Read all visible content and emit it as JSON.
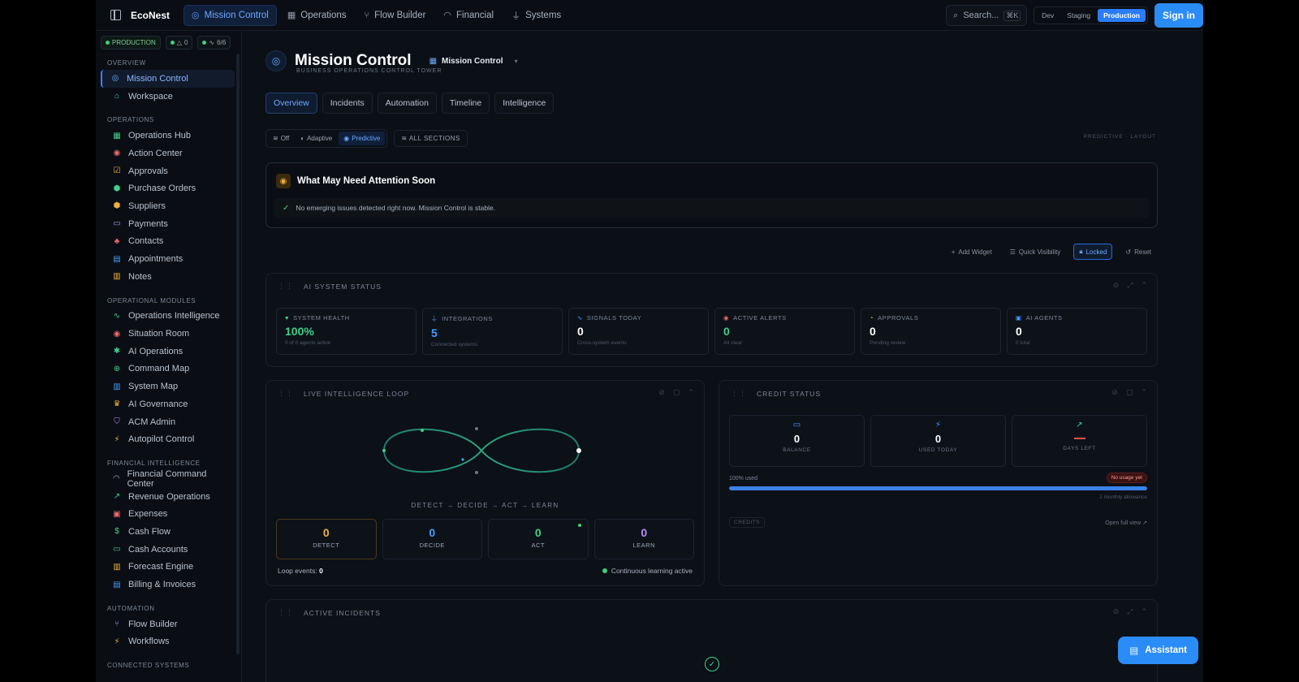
{
  "app": {
    "brand": "EcoNest",
    "nav_tabs": [
      {
        "label": "Mission Control",
        "icon": "gauge-icon"
      },
      {
        "label": "Operations",
        "icon": "grid-icon"
      },
      {
        "label": "Flow Builder",
        "icon": "flow-icon"
      },
      {
        "label": "Financial",
        "icon": "dial-icon"
      },
      {
        "label": "Systems",
        "icon": "plug-icon"
      }
    ],
    "search_placeholder": "Search...",
    "search_shortcut": "⌘K",
    "envs": [
      "Dev",
      "Staging",
      "Production"
    ],
    "active_env": "Production",
    "sign_in": "Sign in"
  },
  "sidebar": {
    "status": {
      "env": "PRODUCTION",
      "alerts": "0",
      "health": "6/6"
    },
    "sections": [
      {
        "title": "OVERVIEW",
        "items": [
          {
            "label": "Mission Control",
            "icon": "◎",
            "color": "#6ea8ff",
            "active": true
          },
          {
            "label": "Workspace",
            "icon": "⌂",
            "color": "#3ed08a"
          }
        ]
      },
      {
        "title": "OPERATIONS",
        "items": [
          {
            "label": "Operations Hub",
            "icon": "▦",
            "color": "#3ed08a"
          },
          {
            "label": "Action Center",
            "icon": "◉",
            "color": "#f26a6a"
          },
          {
            "label": "Approvals",
            "icon": "☑",
            "color": "#f0b13a"
          },
          {
            "label": "Purchase Orders",
            "icon": "⬢",
            "color": "#3ed08a"
          },
          {
            "label": "Suppliers",
            "icon": "⬢",
            "color": "#f0b13a"
          },
          {
            "label": "Payments",
            "icon": "▭",
            "color": "#b48cff"
          },
          {
            "label": "Contacts",
            "icon": "♣",
            "color": "#f26a6a"
          },
          {
            "label": "Appointments",
            "icon": "▤",
            "color": "#4a9cff"
          },
          {
            "label": "Notes",
            "icon": "▥",
            "color": "#f0b13a"
          }
        ]
      },
      {
        "title": "OPERATIONAL MODULES",
        "items": [
          {
            "label": "Operations Intelligence",
            "icon": "∿",
            "color": "#3ed08a"
          },
          {
            "label": "Situation Room",
            "icon": "◉",
            "color": "#f26a6a"
          },
          {
            "label": "AI Operations",
            "icon": "✱",
            "color": "#3ed08a"
          },
          {
            "label": "Command Map",
            "icon": "⊕",
            "color": "#3ed08a"
          },
          {
            "label": "System Map",
            "icon": "▥",
            "color": "#4a9cff"
          },
          {
            "label": "AI Governance",
            "icon": "♛",
            "color": "#f0b13a"
          },
          {
            "label": "ACM Admin",
            "icon": "⛉",
            "color": "#b48cff"
          },
          {
            "label": "Autopilot Control",
            "icon": "⚡",
            "color": "#f0b13a"
          }
        ]
      },
      {
        "title": "FINANCIAL INTELLIGENCE",
        "items": [
          {
            "label": "Financial Command Center",
            "icon": "◠",
            "color": "#a9b3c2"
          },
          {
            "label": "Revenue Operations",
            "icon": "↗",
            "color": "#3ed08a"
          },
          {
            "label": "Expenses",
            "icon": "▣",
            "color": "#f26a6a"
          },
          {
            "label": "Cash Flow",
            "icon": "$",
            "color": "#3ed08a"
          },
          {
            "label": "Cash Accounts",
            "icon": "▭",
            "color": "#3ed08a"
          },
          {
            "label": "Forecast Engine",
            "icon": "▥",
            "color": "#f0b13a"
          },
          {
            "label": "Billing & Invoices",
            "icon": "▤",
            "color": "#4a9cff"
          }
        ]
      },
      {
        "title": "AUTOMATION",
        "items": [
          {
            "label": "Flow Builder",
            "icon": "⑂",
            "color": "#b48cff"
          },
          {
            "label": "Workflows",
            "icon": "⚡",
            "color": "#f0b13a"
          }
        ]
      },
      {
        "title": "CONNECTED SYSTEMS",
        "items": []
      }
    ]
  },
  "header": {
    "title": "Mission Control",
    "subtitle": "BUSINESS OPERATIONS CONTROL TOWER",
    "switcher": "Mission Control"
  },
  "tabs": [
    "Overview",
    "Incidents",
    "Automation",
    "Timeline",
    "Intelligence"
  ],
  "modes": [
    "Off",
    "Adaptive",
    "Predictive"
  ],
  "active_mode": "Predictive",
  "all_sections": "ALL SECTIONS",
  "layout_label": "PREDICTIVE · LAYOUT",
  "attention": {
    "title": "What May Need Attention Soon",
    "message": "No emerging issues detected right now. Mission Control is stable."
  },
  "toolbar": [
    "Add Widget",
    "Quick Visibility",
    "Locked",
    "Reset"
  ],
  "ai_status": {
    "title": "AI SYSTEM STATUS",
    "stats": [
      {
        "label": "SYSTEM HEALTH",
        "value": "100%",
        "sub": "0 of 0 agents active",
        "icon": "♥",
        "color": "#3ed08a"
      },
      {
        "label": "INTEGRATIONS",
        "value": "5",
        "sub": "Connected systems",
        "icon": "⏚",
        "color": "#4a9cff"
      },
      {
        "label": "SIGNALS TODAY",
        "value": "0",
        "sub": "Cross-system events",
        "icon": "∿",
        "color": "#4a9cff"
      },
      {
        "label": "ACTIVE ALERTS",
        "value": "0",
        "sub": "All clear",
        "icon": "◉",
        "color": "#f26a6a"
      },
      {
        "label": "APPROVALS",
        "value": "0",
        "sub": "Pending review",
        "icon": "◔",
        "color": "#f0b13a"
      },
      {
        "label": "AI AGENTS",
        "value": "0",
        "sub": "0 total",
        "icon": "▣",
        "color": "#4a9cff"
      }
    ]
  },
  "loop": {
    "title": "LIVE INTELLIGENCE LOOP",
    "caption": "DETECT → DECIDE → ACT → LEARN",
    "phases": [
      {
        "label": "DETECT",
        "value": "0",
        "color": "#f0b13a"
      },
      {
        "label": "DECIDE",
        "value": "0",
        "color": "#4a9cff"
      },
      {
        "label": "ACT",
        "value": "0",
        "color": "#3ed08a"
      },
      {
        "label": "LEARN",
        "value": "0",
        "color": "#b48cff"
      }
    ],
    "events_label": "Loop events:",
    "events_value": "0",
    "live_text": "Continuous learning active"
  },
  "credit": {
    "title": "CREDIT STATUS",
    "stats": [
      {
        "label": "BALANCE",
        "value": "0",
        "icon": "▭"
      },
      {
        "label": "USED TODAY",
        "value": "0",
        "icon": "⚡"
      },
      {
        "label": "DAYS LEFT",
        "value": "",
        "icon": "↗"
      }
    ],
    "used_label": "100% used",
    "badge": "No usage yet",
    "used_fraction": 1.0,
    "allowance": "1 monthly allowance",
    "tag": "CREDITS",
    "link": "Open full view ↗"
  },
  "incidents": {
    "title": "ACTIVE INCIDENTS"
  },
  "assistant": "Assistant"
}
